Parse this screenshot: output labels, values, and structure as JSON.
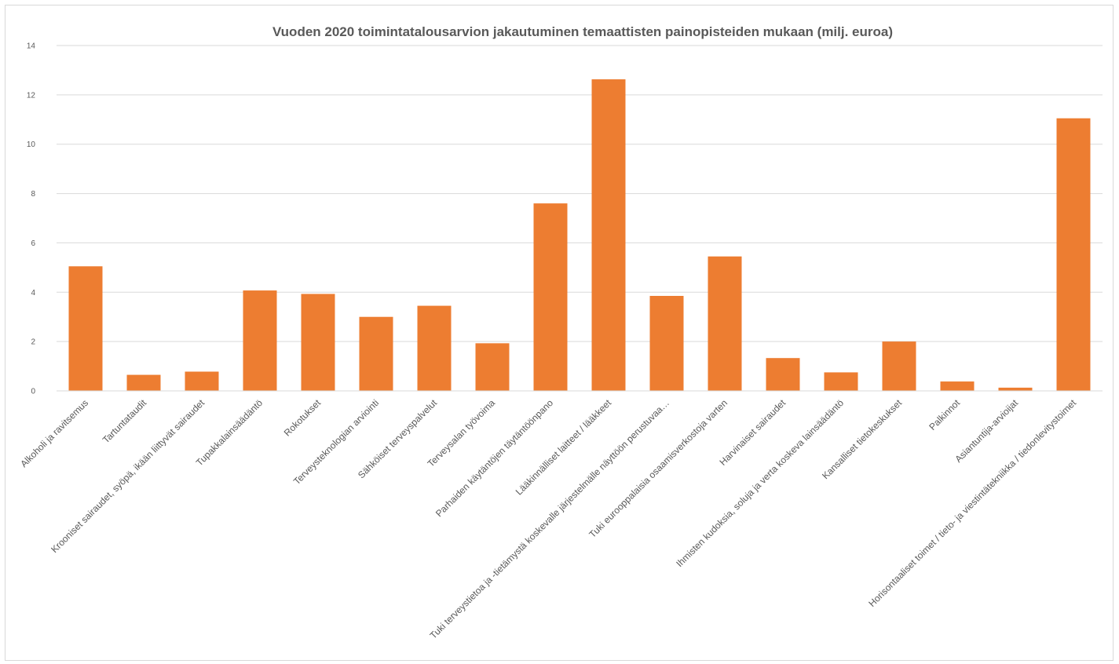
{
  "chart_data": {
    "type": "bar",
    "title": "Vuoden 2020 toimintatalousarvion jakautuminen temaattisten painopisteiden mukaan (milj. euroa)",
    "xlabel": "",
    "ylabel": "",
    "ylim": [
      0,
      14
    ],
    "yticks": [
      0,
      2,
      4,
      6,
      8,
      10,
      12,
      14
    ],
    "grid": true,
    "legend": "none",
    "color": "#ed7d31",
    "categories": [
      "Alkoholi ja ravitsemus",
      "Tartuntataudit",
      "Krooniset sairaudet, syöpä, ikään liittyvät sairaudet",
      "Tupakkalainsäädäntö",
      "Rokotukset",
      "Terveysteknologian arviointi",
      "Sähköiset terveyspalvelut",
      "Terveysalan työvoima",
      "Parhaiden käytäntöjen täytäntöönpano",
      "Lääkinnälliset laitteet / lääkkeet",
      "Tuki terveystietoa ja -tietämystä koskevalle järjestelmälle näyttöön perustuvaa…",
      "Tuki eurooppalaisia osaamisverkostoja varten",
      "Harvinaiset sairaudet",
      "Ihmisten kudoksia, soluja ja verta koskeva lainsäädäntö",
      "Kansalliset tietokeskukset",
      "Palkinnot",
      "Asiantuntija-arvioijat",
      "Horisontaaliset toimet / tieto- ja viestintätekniikka / tiedonlevitystoimet"
    ],
    "values": [
      5.05,
      0.65,
      0.78,
      4.07,
      3.93,
      3.0,
      3.45,
      1.93,
      7.6,
      12.63,
      3.85,
      5.45,
      1.33,
      0.75,
      2.0,
      0.38,
      0.13,
      11.05
    ]
  }
}
